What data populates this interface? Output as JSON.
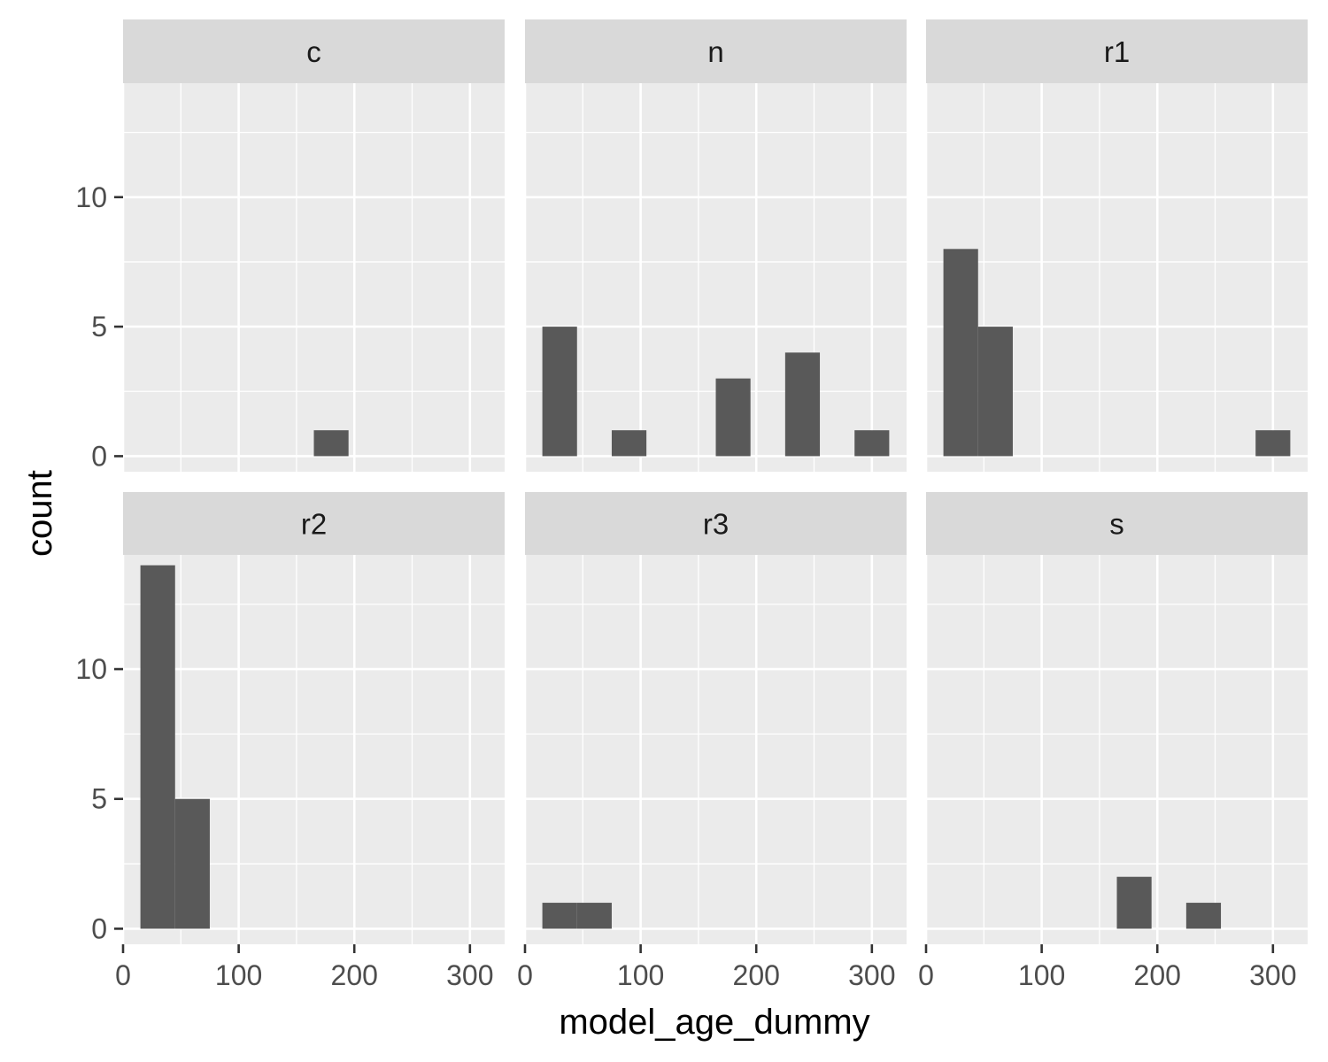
{
  "chart_data": {
    "type": "bar",
    "chart_kind": "faceted histogram",
    "xlabel": "model_age_dummy",
    "ylabel": "count",
    "xlim": [
      0,
      330
    ],
    "ylim": [
      -0.6,
      14.4
    ],
    "x_ticks": [
      0,
      100,
      200,
      300
    ],
    "y_ticks": [
      0,
      5,
      10
    ],
    "bin_width": 30,
    "grid": true,
    "legend": "none",
    "bar_color": "#595959",
    "panel_color": "#EBEBEB",
    "strip_color": "#D9D9D9",
    "facet_columns": 3,
    "facets": [
      {
        "label": "c",
        "bins": [
          {
            "x0": 165,
            "x1": 195,
            "count": 1
          }
        ]
      },
      {
        "label": "n",
        "bins": [
          {
            "x0": 15,
            "x1": 45,
            "count": 5
          },
          {
            "x0": 75,
            "x1": 105,
            "count": 1
          },
          {
            "x0": 165,
            "x1": 195,
            "count": 3
          },
          {
            "x0": 225,
            "x1": 255,
            "count": 4
          },
          {
            "x0": 285,
            "x1": 315,
            "count": 1
          }
        ]
      },
      {
        "label": "r1",
        "bins": [
          {
            "x0": 15,
            "x1": 45,
            "count": 8
          },
          {
            "x0": 45,
            "x1": 75,
            "count": 5
          },
          {
            "x0": 285,
            "x1": 315,
            "count": 1
          }
        ]
      },
      {
        "label": "r2",
        "bins": [
          {
            "x0": 15,
            "x1": 45,
            "count": 14
          },
          {
            "x0": 45,
            "x1": 75,
            "count": 5
          }
        ]
      },
      {
        "label": "r3",
        "bins": [
          {
            "x0": 15,
            "x1": 45,
            "count": 1
          },
          {
            "x0": 45,
            "x1": 75,
            "count": 1
          }
        ]
      },
      {
        "label": "s",
        "bins": [
          {
            "x0": 165,
            "x1": 195,
            "count": 2
          },
          {
            "x0": 225,
            "x1": 255,
            "count": 1
          }
        ]
      }
    ]
  }
}
